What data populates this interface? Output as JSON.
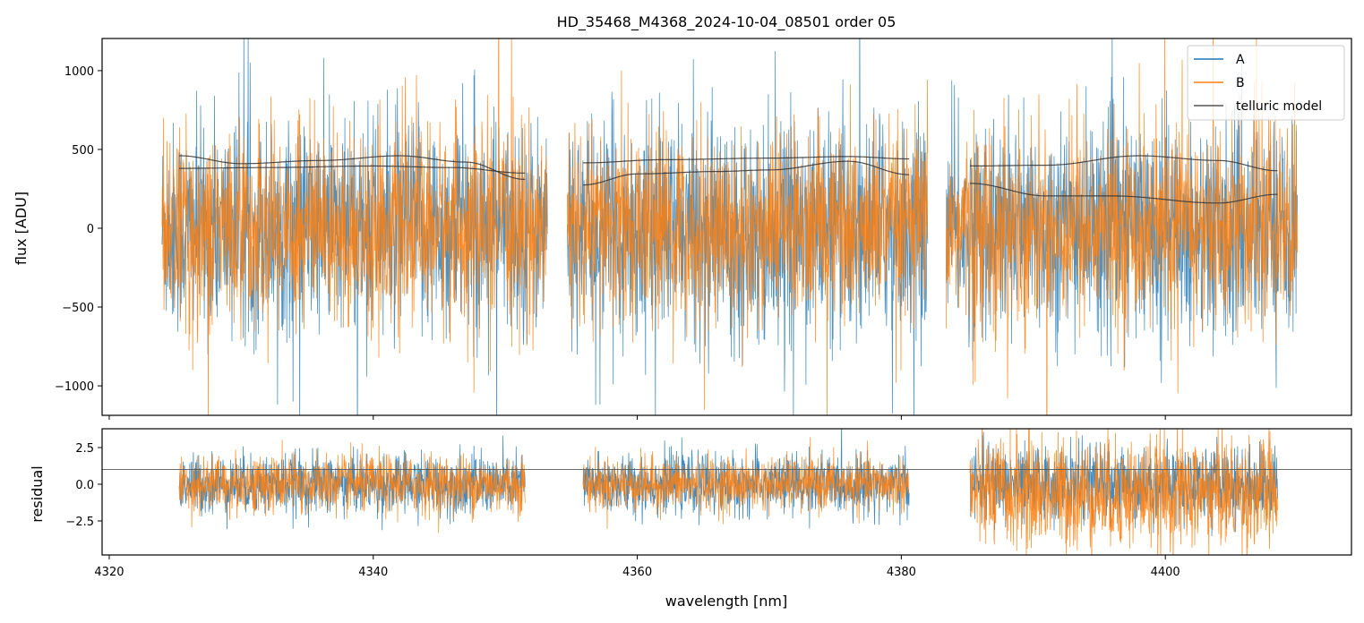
{
  "chart_data": {
    "type": "line",
    "title": "HD_35468_M4368_2024-10-04_08501  order 05",
    "xlabel": "wavelength [nm]",
    "xlim": [
      4319.46,
      4414.1
    ],
    "xticks": [
      "4320",
      "4340",
      "4360",
      "4380",
      "4400"
    ],
    "xtick_values": [
      4320,
      4340,
      4360,
      4380,
      4400
    ],
    "panels": [
      {
        "name": "flux",
        "ylabel": "flux [ADU]",
        "ylim": [
          -1187,
          1204
        ],
        "yticks": [
          "1000",
          "500",
          "0",
          "−500",
          "−1000"
        ],
        "ytick_values": [
          1000,
          500,
          0,
          -500,
          -1000
        ],
        "legend": {
          "placement": "top-right",
          "entries": [
            "A",
            "B",
            "telluric model"
          ]
        },
        "series": [
          {
            "name": "A",
            "color": "#1f77b4",
            "kind": "noise",
            "segments": [
              [
                4324.0,
                4353.2
              ],
              [
                4354.7,
                4382.0
              ],
              [
                4383.4,
                4410.0
              ]
            ],
            "sigma": 330
          },
          {
            "name": "B",
            "color": "#ff7f0e",
            "kind": "noise",
            "segments": [
              [
                4324.0,
                4353.2
              ],
              [
                4354.7,
                4382.0
              ],
              [
                4383.4,
                4410.0
              ]
            ],
            "sigma": 300
          },
          {
            "name": "telluric model",
            "color": "#333333",
            "kind": "curves",
            "curves": [
              {
                "x": [
                  4325.3,
                  4330,
                  4336,
                  4342,
                  4347,
                  4351.5
                ],
                "y": [
                  460,
                  410,
                  430,
                  460,
                  420,
                  310
                ]
              },
              {
                "x": [
                  4325.3,
                  4332,
                  4340,
                  4346,
                  4351.5
                ],
                "y": [
                  380,
                  385,
                  395,
                  385,
                  350
                ]
              },
              {
                "x": [
                  4355.9,
                  4362,
                  4370,
                  4376,
                  4380.6
                ],
                "y": [
                  415,
                  435,
                  445,
                  455,
                  440
                ]
              },
              {
                "x": [
                  4355.9,
                  4360,
                  4366,
                  4370,
                  4376,
                  4380.6
                ],
                "y": [
                  275,
                  345,
                  360,
                  370,
                  425,
                  340
                ]
              },
              {
                "x": [
                  4385.2,
                  4391,
                  4398,
                  4404,
                  4408.5
                ],
                "y": [
                  395,
                  400,
                  460,
                  430,
                  365
                ]
              },
              {
                "x": [
                  4385.2,
                  4391,
                  4396,
                  4404,
                  4408.5
                ],
                "y": [
                  285,
                  205,
                  205,
                  160,
                  215
                ]
              }
            ]
          }
        ]
      },
      {
        "name": "residual",
        "ylabel": "residual",
        "ylim": [
          -4.82,
          3.78
        ],
        "yticks": [
          "2.5",
          "0.0",
          "−2.5"
        ],
        "ytick_values": [
          2.5,
          0.0,
          -2.5
        ],
        "hline": 1.0,
        "series": [
          {
            "name": "A",
            "color": "#1f77b4",
            "segments": [
              [
                4325.3,
                4351.5
              ],
              [
                4355.9,
                4380.6
              ],
              [
                4385.2,
                4408.5
              ]
            ],
            "sigma": [
              1.0,
              1.0,
              1.3
            ]
          },
          {
            "name": "B",
            "color": "#ff7f0e",
            "segments": [
              [
                4325.3,
                4351.5
              ],
              [
                4355.9,
                4380.6
              ],
              [
                4385.2,
                4408.5
              ]
            ],
            "sigma": [
              1.0,
              0.9,
              1.9
            ]
          }
        ]
      }
    ]
  }
}
